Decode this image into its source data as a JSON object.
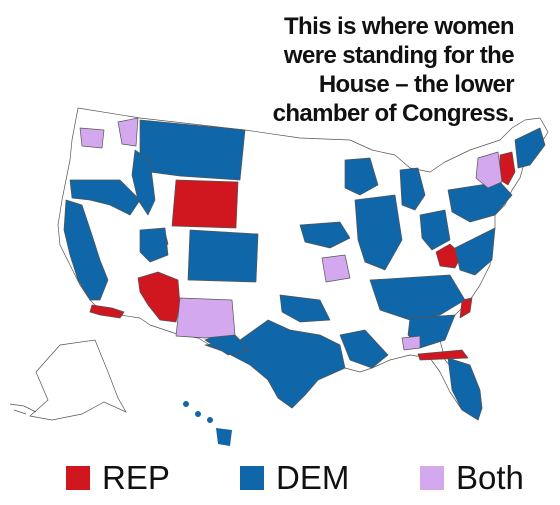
{
  "title_lines": [
    "This is where women",
    "were standing for the",
    "House – the lower",
    "chamber of Congress."
  ],
  "legend": [
    {
      "label": "REP",
      "color": "#d0161e"
    },
    {
      "label": "DEM",
      "color": "#0f66a8"
    },
    {
      "label": "Both",
      "color": "#d4a8ef"
    }
  ],
  "map_colors": {
    "rep": "#d0161e",
    "dem": "#0f66a8",
    "both": "#d4a8ef",
    "none": "#ffffff",
    "border": "#555555"
  }
}
